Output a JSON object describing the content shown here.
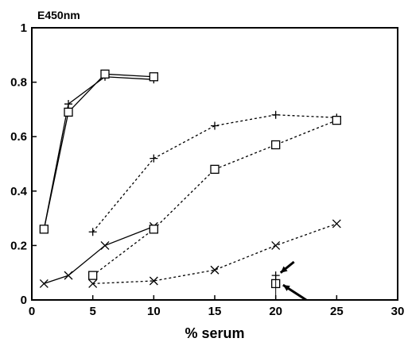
{
  "chart_data": {
    "type": "line",
    "xlabel": "% serum",
    "ylabel": "E450nm",
    "xlim": [
      0,
      30
    ],
    "ylim": [
      0,
      1
    ],
    "x_ticks": [
      0,
      5,
      10,
      15,
      20,
      25,
      30
    ],
    "y_ticks": [
      0,
      0.2,
      0.4,
      0.6,
      0.8,
      1
    ],
    "x_tick_labels": [
      "0",
      "5",
      "10",
      "15",
      "20",
      "25",
      "30"
    ],
    "y_tick_labels": [
      "0",
      "0.2",
      "0.4",
      "0.6",
      "0.8",
      "1"
    ],
    "grid": false,
    "series": [
      {
        "marker": "plus",
        "line": "solid",
        "x": [
          1,
          3,
          6,
          10
        ],
        "y": [
          0.26,
          0.72,
          0.82,
          0.81
        ]
      },
      {
        "marker": "square",
        "line": "solid",
        "x": [
          1,
          3,
          6,
          10
        ],
        "y": [
          0.26,
          0.69,
          0.83,
          0.82
        ]
      },
      {
        "marker": "x",
        "line": "solid",
        "x": [
          1,
          3,
          6,
          10
        ],
        "y": [
          0.06,
          0.09,
          0.2,
          0.27
        ]
      },
      {
        "marker": "plus",
        "line": "dashed",
        "x": [
          5,
          10,
          15,
          20,
          25
        ],
        "y": [
          0.25,
          0.52,
          0.64,
          0.68,
          0.67
        ]
      },
      {
        "marker": "square",
        "line": "dashed",
        "x": [
          5,
          10,
          15,
          20,
          25
        ],
        "y": [
          0.09,
          0.26,
          0.48,
          0.57,
          0.66
        ]
      },
      {
        "marker": "x",
        "line": "dashed",
        "x": [
          5,
          10,
          15,
          20,
          25
        ],
        "y": [
          0.06,
          0.07,
          0.11,
          0.2,
          0.28
        ]
      },
      {
        "marker": "plus",
        "line": "none",
        "x": [
          20
        ],
        "y": [
          0.09
        ]
      },
      {
        "marker": "square",
        "line": "none",
        "x": [
          20
        ],
        "y": [
          0.06
        ]
      }
    ],
    "annotations": [
      {
        "type": "arrow",
        "from": [
          21.5,
          0.14
        ],
        "to": [
          20.4,
          0.1
        ]
      },
      {
        "type": "arrow",
        "from": [
          22.5,
          0.0
        ],
        "to": [
          20.6,
          0.055
        ]
      }
    ]
  }
}
